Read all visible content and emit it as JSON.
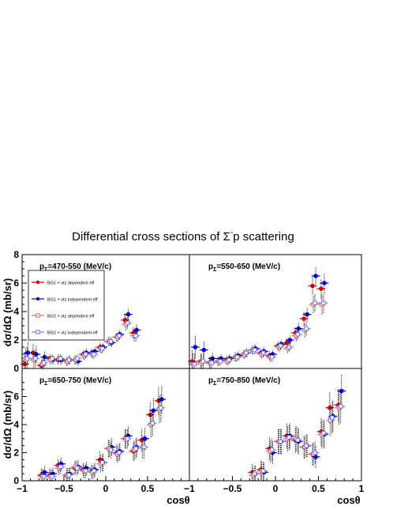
{
  "figure": {
    "title_main": "Differential cross sections of Σ",
    "title_sup": "-",
    "title_tail": "p scattering"
  },
  "legend": {
    "entries": [
      {
        "label": "BG1 + vtz dependent eff",
        "color": "#cc0000",
        "marker": "filled-circle"
      },
      {
        "label": "BG1 + vtz independent eff",
        "color": "#0000dd",
        "marker": "filled-circle"
      },
      {
        "label": "BG2 + vtz dependent eff",
        "color": "#dd6666",
        "marker": "open-square"
      },
      {
        "label": "BG2 + vtz independent eff",
        "color": "#7777ee",
        "marker": "open-square"
      }
    ]
  },
  "axis_labels": {
    "y_top": "dσ/dΩ (mb/sr)",
    "y_bottom": "dσ/dΩ (mb/sr)",
    "x_left": "cosθ",
    "x_right": "cosθ"
  },
  "ticks": {
    "y_top": [
      "0",
      "2",
      "4",
      "6",
      "8"
    ],
    "y_bottom": [
      "0",
      "2",
      "4",
      "6"
    ],
    "x_left": [
      "−1",
      "−0.5",
      "0",
      "0.5"
    ],
    "x_right": [
      "−1",
      "−0.5",
      "0",
      "0.5",
      "1"
    ]
  },
  "chart_data": [
    {
      "type": "scatter",
      "panel": "top-left",
      "label_main": "p",
      "label_sub": "Σ",
      "label_tail": "=470-550 (MeV/c)",
      "xlim": [
        -1,
        1
      ],
      "ylim": [
        0,
        8
      ],
      "x": [
        -0.95,
        -0.85,
        -0.75,
        -0.65,
        -0.55,
        -0.45,
        -0.35,
        -0.25,
        -0.15,
        -0.05,
        0.05,
        0.15,
        0.25,
        0.35
      ],
      "series": [
        {
          "values": [
            0.3,
            1.1,
            0.2,
            0.7,
            0.6,
            0.5,
            0.6,
            1.0,
            1.1,
            1.5,
            1.9,
            2.2,
            3.4,
            2.5
          ],
          "errors": [
            0.8,
            0.6,
            0.4,
            0.3,
            0.3,
            0.3,
            0.3,
            0.3,
            0.3,
            0.3,
            0.3,
            0.3,
            0.4,
            0.4
          ]
        },
        {
          "values": [
            1.1,
            1.0,
            0.8,
            0.6,
            0.6,
            0.6,
            0.5,
            1.1,
            1.2,
            1.5,
            1.8,
            2.4,
            3.8,
            2.7
          ],
          "errors": [
            0.8,
            0.6,
            0.4,
            0.3,
            0.3,
            0.3,
            0.3,
            0.3,
            0.3,
            0.3,
            0.3,
            0.3,
            0.4,
            0.4
          ]
        },
        {
          "values": [
            0.7,
            0.6,
            0.3,
            0.6,
            0.7,
            0.5,
            0.6,
            0.9,
            1.0,
            1.4,
            1.9,
            2.2,
            3.1,
            2.3
          ],
          "errors": [
            0.8,
            0.6,
            0.4,
            0.3,
            0.3,
            0.3,
            0.3,
            0.3,
            0.3,
            0.3,
            0.3,
            0.3,
            0.4,
            0.4
          ]
        },
        {
          "values": [
            0.7,
            0.7,
            0.4,
            0.7,
            0.7,
            0.6,
            0.7,
            1.0,
            1.0,
            1.4,
            1.9,
            2.3,
            3.2,
            2.3
          ],
          "errors": [
            0.8,
            0.6,
            0.4,
            0.3,
            0.3,
            0.3,
            0.3,
            0.3,
            0.3,
            0.3,
            0.3,
            0.3,
            0.4,
            0.4
          ]
        }
      ]
    },
    {
      "type": "scatter",
      "panel": "top-right",
      "label_main": "p",
      "label_sub": "Σ",
      "label_tail": "=550-650 (MeV/c)",
      "xlim": [
        -1,
        1
      ],
      "ylim": [
        0,
        8
      ],
      "x": [
        -0.95,
        -0.85,
        -0.75,
        -0.65,
        -0.55,
        -0.45,
        -0.35,
        -0.25,
        -0.15,
        -0.05,
        0.05,
        0.15,
        0.25,
        0.35,
        0.45,
        0.55
      ],
      "series": [
        {
          "values": [
            0.5,
            0.5,
            0.4,
            0.5,
            0.6,
            0.8,
            1.0,
            1.3,
            1.1,
            0.9,
            1.6,
            1.8,
            2.5,
            3.5,
            5.8,
            5.6
          ],
          "errors": [
            0.8,
            0.6,
            0.4,
            0.3,
            0.3,
            0.3,
            0.3,
            0.3,
            0.3,
            0.3,
            0.3,
            0.3,
            0.4,
            0.5,
            0.6,
            0.7
          ]
        },
        {
          "values": [
            1.5,
            1.3,
            0.7,
            0.7,
            0.7,
            0.9,
            1.1,
            1.4,
            1.2,
            1.0,
            1.7,
            2.0,
            2.8,
            3.8,
            6.5,
            6.0
          ],
          "errors": [
            0.8,
            0.6,
            0.4,
            0.3,
            0.3,
            0.3,
            0.3,
            0.3,
            0.3,
            0.3,
            0.3,
            0.3,
            0.4,
            0.5,
            0.6,
            0.7
          ]
        },
        {
          "values": [
            0.3,
            0.4,
            0.4,
            0.5,
            0.5,
            0.8,
            1.0,
            1.3,
            1.0,
            0.8,
            1.5,
            1.4,
            2.3,
            2.7,
            4.5,
            4.5
          ],
          "errors": [
            0.8,
            0.6,
            0.4,
            0.3,
            0.3,
            0.3,
            0.3,
            0.3,
            0.3,
            0.3,
            0.3,
            0.3,
            0.4,
            0.5,
            0.6,
            0.7
          ]
        },
        {
          "values": [
            0.3,
            0.5,
            0.4,
            0.5,
            0.6,
            0.8,
            1.1,
            1.3,
            1.1,
            0.8,
            1.6,
            1.5,
            2.4,
            2.8,
            4.6,
            4.6
          ],
          "errors": [
            0.8,
            0.6,
            0.4,
            0.3,
            0.3,
            0.3,
            0.3,
            0.3,
            0.3,
            0.3,
            0.3,
            0.3,
            0.4,
            0.5,
            0.6,
            0.7
          ]
        }
      ]
    },
    {
      "type": "scatter",
      "panel": "bottom-left",
      "label_main": "p",
      "label_sub": "Σ",
      "label_tail": "=650-750 (MeV/c)",
      "xlim": [
        -1,
        1
      ],
      "ylim": [
        0,
        8
      ],
      "x": [
        -0.75,
        -0.65,
        -0.55,
        -0.45,
        -0.35,
        -0.25,
        -0.15,
        -0.05,
        0.05,
        0.15,
        0.25,
        0.35,
        0.45,
        0.55,
        0.65
      ],
      "series": [
        {
          "values": [
            0.4,
            0.4,
            1.1,
            0.4,
            0.9,
            0.8,
            0.7,
            1.5,
            2.3,
            2.0,
            3.0,
            2.1,
            2.9,
            4.7,
            5.7
          ],
          "errors": [
            0.5,
            0.5,
            0.5,
            0.5,
            0.5,
            0.5,
            0.5,
            0.6,
            0.6,
            0.6,
            0.7,
            0.7,
            0.8,
            0.9,
            1.0
          ]
        },
        {
          "values": [
            0.6,
            0.5,
            1.2,
            0.5,
            1.0,
            0.9,
            0.8,
            1.3,
            2.4,
            2.1,
            3.2,
            2.4,
            3.0,
            5.0,
            5.8
          ],
          "errors": [
            0.5,
            0.5,
            0.5,
            0.5,
            0.5,
            0.5,
            0.5,
            0.6,
            0.6,
            0.6,
            0.7,
            0.7,
            0.8,
            0.9,
            1.0
          ]
        },
        {
          "values": [
            0.3,
            0.3,
            0.9,
            0.4,
            1.0,
            0.7,
            0.6,
            1.2,
            2.3,
            1.9,
            3.0,
            2.2,
            2.4,
            4.0,
            5.1
          ],
          "errors": [
            0.5,
            0.5,
            0.5,
            0.5,
            0.5,
            0.5,
            0.5,
            0.6,
            0.6,
            0.6,
            0.7,
            0.7,
            0.8,
            0.9,
            1.0
          ]
        },
        {
          "values": [
            0.3,
            0.3,
            1.0,
            0.4,
            0.9,
            0.7,
            0.7,
            1.3,
            2.2,
            2.0,
            3.0,
            2.3,
            2.4,
            4.1,
            5.2
          ],
          "errors": [
            0.5,
            0.5,
            0.5,
            0.5,
            0.5,
            0.5,
            0.5,
            0.6,
            0.6,
            0.6,
            0.7,
            0.7,
            0.8,
            0.9,
            1.0
          ]
        }
      ]
    },
    {
      "type": "scatter",
      "panel": "bottom-right",
      "label_main": "p",
      "label_sub": "Σ",
      "label_tail": "=750-850 (MeV/c)",
      "xlim": [
        -1,
        1
      ],
      "ylim": [
        0,
        8
      ],
      "x": [
        -0.25,
        -0.15,
        -0.05,
        0.05,
        0.15,
        0.25,
        0.35,
        0.45,
        0.55,
        0.65,
        0.75
      ],
      "series": [
        {
          "values": [
            0.6,
            0.8,
            2.3,
            2.8,
            3.2,
            2.9,
            2.4,
            1.9,
            3.5,
            5.2,
            5.4
          ],
          "errors": [
            0.6,
            0.7,
            0.8,
            0.9,
            0.9,
            0.9,
            0.8,
            0.8,
            1.0,
            1.1,
            1.2
          ]
        },
        {
          "values": [
            0.5,
            0.6,
            2.0,
            2.8,
            3.2,
            2.8,
            2.5,
            1.7,
            3.3,
            4.6,
            6.4
          ],
          "errors": [
            0.6,
            0.7,
            0.8,
            0.9,
            0.9,
            0.9,
            0.8,
            0.8,
            1.0,
            1.1,
            1.2
          ]
        },
        {
          "values": [
            0.4,
            0.7,
            2.1,
            2.8,
            3.0,
            3.0,
            2.4,
            1.9,
            3.3,
            4.3,
            5.2
          ],
          "errors": [
            0.6,
            0.7,
            0.8,
            0.9,
            0.9,
            0.9,
            0.8,
            0.8,
            1.0,
            1.1,
            1.2
          ]
        },
        {
          "values": [
            0.5,
            0.7,
            2.2,
            2.8,
            3.1,
            2.9,
            2.5,
            2.0,
            3.4,
            4.5,
            5.3
          ],
          "errors": [
            0.6,
            0.7,
            0.8,
            0.9,
            0.9,
            0.9,
            0.8,
            0.8,
            1.0,
            1.1,
            1.2
          ]
        }
      ]
    }
  ]
}
